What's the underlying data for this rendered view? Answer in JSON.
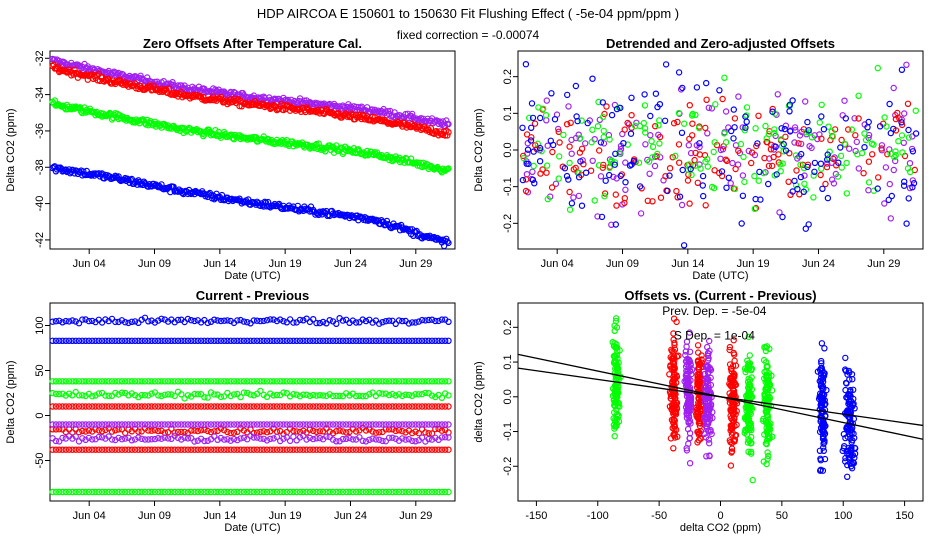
{
  "header": {
    "title": "HDP    AIRCOA E    150601 to 150630   Fit Flushing Effect ( -5e-04 ppm/ppm )",
    "subtitle": "fixed correction = -0.00074"
  },
  "colors": {
    "purple": "#a020f0",
    "red": "#ff0000",
    "green": "#00ff00",
    "blue": "#0000ff",
    "black": "#000000"
  },
  "chart_data": [
    {
      "type": "scatter",
      "title": "Zero Offsets After Temperature Cal.",
      "xlabel": "Date (UTC)",
      "ylabel": "Delta CO2 (ppm)",
      "xlim": [
        0,
        31
      ],
      "ylim": [
        -42.5,
        -31.6
      ],
      "xticks": [
        {
          "v": 3,
          "label": "Jun 04"
        },
        {
          "v": 8,
          "label": "Jun 09"
        },
        {
          "v": 13,
          "label": "Jun 14"
        },
        {
          "v": 18,
          "label": "Jun 19"
        },
        {
          "v": 23,
          "label": "Jun 24"
        },
        {
          "v": 28,
          "label": "Jun 29"
        }
      ],
      "yticks": [
        -42,
        -40,
        -38,
        -36,
        -34,
        -32
      ],
      "series": [
        {
          "name": "purple",
          "color": "#a020f0",
          "x": [
            0,
            5,
            10,
            15,
            20,
            25,
            30
          ],
          "values": [
            -32.1,
            -32.9,
            -33.6,
            -34.1,
            -34.5,
            -34.9,
            -35.6
          ]
        },
        {
          "name": "red",
          "color": "#ff0000",
          "x": [
            0,
            5,
            10,
            15,
            20,
            25,
            30
          ],
          "values": [
            -32.5,
            -33.3,
            -34.0,
            -34.5,
            -34.9,
            -35.4,
            -36.1
          ]
        },
        {
          "name": "green",
          "color": "#00ff00",
          "x": [
            0,
            5,
            10,
            15,
            20,
            25,
            30
          ],
          "values": [
            -34.5,
            -35.2,
            -35.9,
            -36.4,
            -36.8,
            -37.3,
            -38.1
          ]
        },
        {
          "name": "blue",
          "color": "#0000ff",
          "x": [
            0,
            5,
            10,
            15,
            20,
            25,
            30
          ],
          "values": [
            -38.0,
            -38.6,
            -39.3,
            -39.9,
            -40.4,
            -40.9,
            -42.1
          ]
        }
      ]
    },
    {
      "type": "scatter",
      "title": "Detrended and Zero-adjusted Offsets",
      "xlabel": "Date (UTC)",
      "ylabel": "Delta CO2 (ppm)",
      "xlim": [
        0,
        31
      ],
      "ylim": [
        -0.27,
        0.27
      ],
      "xticks": [
        {
          "v": 3,
          "label": "Jun 04"
        },
        {
          "v": 8,
          "label": "Jun 09"
        },
        {
          "v": 13,
          "label": "Jun 14"
        },
        {
          "v": 18,
          "label": "Jun 19"
        },
        {
          "v": 23,
          "label": "Jun 24"
        },
        {
          "v": 28,
          "label": "Jun 29"
        }
      ],
      "yticks": [
        -0.2,
        -0.1,
        0.0,
        0.1,
        0.2
      ],
      "ytick_labels": [
        "-0.2",
        "-0.1",
        "0.0",
        "0.1",
        "0.2"
      ],
      "series": [
        {
          "name": "purple",
          "color": "#a020f0",
          "spread": 0.16
        },
        {
          "name": "red",
          "color": "#ff0000",
          "spread": 0.14
        },
        {
          "name": "green",
          "color": "#00ff00",
          "spread": 0.15
        },
        {
          "name": "blue",
          "color": "#0000ff",
          "spread": 0.2
        }
      ]
    },
    {
      "type": "scatter",
      "title": "Current - Previous",
      "xlabel": "Date (UTC)",
      "ylabel": "Delta CO2 (ppm)",
      "xlim": [
        0,
        31
      ],
      "ylim": [
        -95,
        125
      ],
      "xticks": [
        {
          "v": 3,
          "label": "Jun 04"
        },
        {
          "v": 8,
          "label": "Jun 09"
        },
        {
          "v": 13,
          "label": "Jun 14"
        },
        {
          "v": 18,
          "label": "Jun 19"
        },
        {
          "v": 23,
          "label": "Jun 24"
        },
        {
          "v": 28,
          "label": "Jun 29"
        }
      ],
      "yticks": [
        -50,
        0,
        50,
        100
      ],
      "series": [
        {
          "name": "blue",
          "color": "#0000ff",
          "values": [
            105,
            83
          ]
        },
        {
          "name": "green",
          "color": "#00ff00",
          "values": [
            38,
            23,
            -85
          ]
        },
        {
          "name": "red",
          "color": "#ff0000",
          "values": [
            10,
            -17,
            -38
          ]
        },
        {
          "name": "purple",
          "color": "#a020f0",
          "values": [
            -10,
            -26
          ]
        }
      ]
    },
    {
      "type": "scatter",
      "title": "Offsets vs. (Current - Previous)",
      "xlabel": "delta CO2 (ppm)",
      "ylabel": "delta CO2 (ppm)",
      "xlim": [
        -165,
        165
      ],
      "ylim": [
        -0.3,
        0.27
      ],
      "xticks": [
        -150,
        -100,
        -50,
        0,
        50,
        100,
        150
      ],
      "yticks": [
        -0.2,
        -0.1,
        0.0,
        0.1,
        0.2
      ],
      "ytick_labels": [
        "-0.2",
        "-0.1",
        "0.0",
        "0.1",
        "0.2"
      ],
      "annotations": [
        "Prev. Dep. =  -5e-04",
        "S Dep. =  1e-04"
      ],
      "series": [
        {
          "name": "green",
          "color": "#00ff00",
          "x_clusters": [
            -85,
            23,
            38
          ]
        },
        {
          "name": "red",
          "color": "#ff0000",
          "x_clusters": [
            -38,
            -17,
            10
          ]
        },
        {
          "name": "purple",
          "color": "#a020f0",
          "x_clusters": [
            -26,
            -10
          ]
        },
        {
          "name": "blue",
          "color": "#0000ff",
          "x_clusters": [
            83,
            105
          ]
        }
      ],
      "fit_lines": [
        {
          "name": "fit-1",
          "slope": -0.0005,
          "intercept": 0.0
        },
        {
          "name": "fit-2",
          "slope": -0.00074,
          "intercept": 0.0
        }
      ]
    }
  ]
}
